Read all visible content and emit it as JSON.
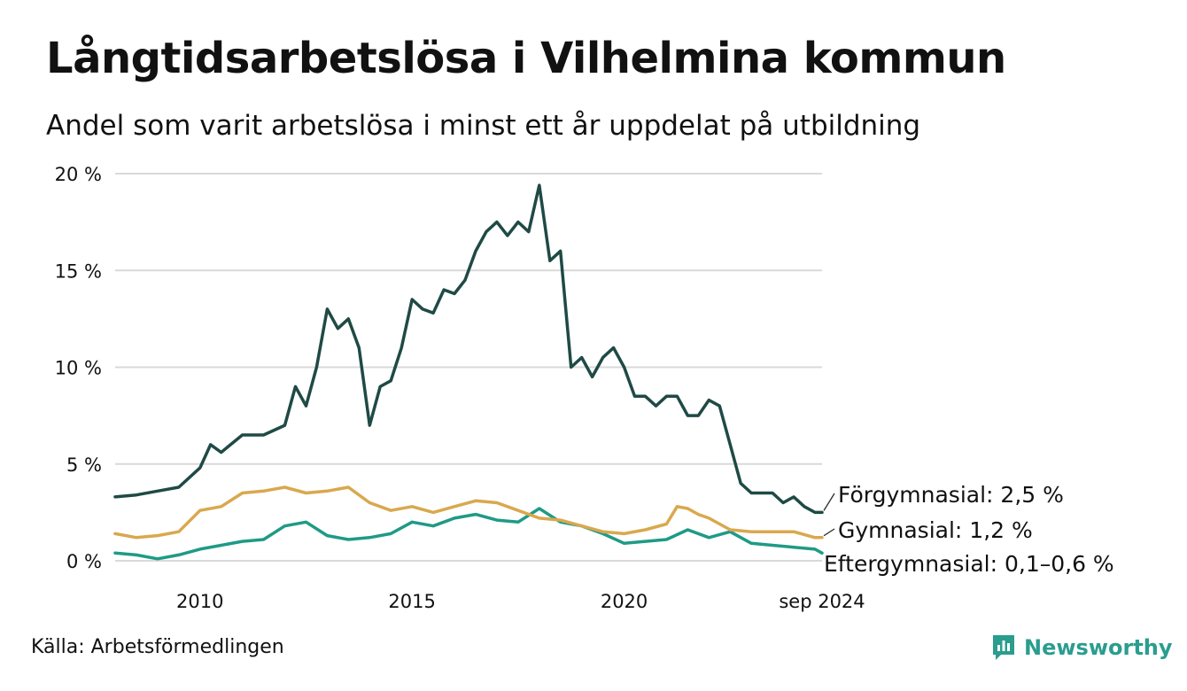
{
  "header": {
    "title": "Långtidsarbetslösa i Vilhelmina kommun",
    "subtitle": "Andel som varit arbetslösa i minst ett år uppdelat på utbildning"
  },
  "footer": {
    "source": "Källa: Arbetsförmedlingen",
    "brand": "Newsworthy"
  },
  "colors": {
    "forgymnasial": "#1f4a45",
    "gymnasial": "#d9a84e",
    "eftergymnasial": "#1f9a86",
    "grid": "#d9d9d9",
    "brand": "#2a9d8f"
  },
  "chart_data": {
    "type": "line",
    "title": "Långtidsarbetslösa i Vilhelmina kommun",
    "subtitle": "Andel som varit arbetslösa i minst ett år uppdelat på utbildning",
    "xlabel": "",
    "ylabel": "",
    "ylim": [
      0,
      20
    ],
    "xlim": [
      "2008-01",
      "2024-09"
    ],
    "y_ticks": [
      0,
      5,
      10,
      15,
      20
    ],
    "y_tick_labels": [
      "0 %",
      "5 %",
      "10 %",
      "15 %",
      "20 %"
    ],
    "x_ticks": [
      "2010-01",
      "2015-01",
      "2020-01",
      "2024-09"
    ],
    "x_tick_labels": [
      "2010",
      "2015",
      "2020",
      "sep 2024"
    ],
    "grid": "horizontal",
    "legend": "direct labels at line ends (right)",
    "series": [
      {
        "name": "Förgymnasial",
        "end_label": "Förgymnasial: 2,5 %",
        "color": "#1f4a45",
        "x": [
          "2008-01",
          "2008-07",
          "2009-01",
          "2009-07",
          "2010-01",
          "2010-04",
          "2010-07",
          "2011-01",
          "2011-07",
          "2012-01",
          "2012-04",
          "2012-07",
          "2012-10",
          "2013-01",
          "2013-04",
          "2013-07",
          "2013-10",
          "2014-01",
          "2014-04",
          "2014-07",
          "2014-10",
          "2015-01",
          "2015-04",
          "2015-07",
          "2015-10",
          "2016-01",
          "2016-04",
          "2016-07",
          "2016-10",
          "2017-01",
          "2017-04",
          "2017-07",
          "2017-10",
          "2018-01",
          "2018-04",
          "2018-07",
          "2018-10",
          "2019-01",
          "2019-04",
          "2019-07",
          "2019-10",
          "2020-01",
          "2020-04",
          "2020-07",
          "2020-10",
          "2021-01",
          "2021-04",
          "2021-07",
          "2021-10",
          "2022-01",
          "2022-04",
          "2022-07",
          "2022-10",
          "2023-01",
          "2023-04",
          "2023-07",
          "2023-10",
          "2024-01",
          "2024-04",
          "2024-07",
          "2024-09"
        ],
        "y": [
          3.3,
          3.4,
          3.6,
          3.8,
          4.8,
          6.0,
          5.6,
          6.5,
          6.5,
          7.0,
          9.0,
          8.0,
          10.0,
          13.0,
          12.0,
          12.5,
          11.0,
          7.0,
          9.0,
          9.3,
          11.0,
          13.5,
          13.0,
          12.8,
          14.0,
          13.8,
          14.5,
          16.0,
          17.0,
          17.5,
          16.8,
          17.5,
          17.0,
          19.4,
          15.5,
          16.0,
          10.0,
          10.5,
          9.5,
          10.5,
          11.0,
          10.0,
          8.5,
          8.5,
          8.0,
          8.5,
          8.5,
          7.5,
          7.5,
          8.3,
          8.0,
          6.0,
          4.0,
          3.5,
          3.5,
          3.5,
          3.0,
          3.3,
          2.8,
          2.5,
          2.5
        ]
      },
      {
        "name": "Gymnasial",
        "end_label": "Gymnasial: 1,2 %",
        "color": "#d9a84e",
        "x": [
          "2008-01",
          "2008-07",
          "2009-01",
          "2009-07",
          "2010-01",
          "2010-07",
          "2011-01",
          "2011-07",
          "2012-01",
          "2012-07",
          "2013-01",
          "2013-07",
          "2014-01",
          "2014-07",
          "2015-01",
          "2015-07",
          "2016-01",
          "2016-07",
          "2017-01",
          "2017-07",
          "2018-01",
          "2018-07",
          "2019-01",
          "2019-07",
          "2020-01",
          "2020-07",
          "2021-01",
          "2021-04",
          "2021-07",
          "2021-10",
          "2022-01",
          "2022-07",
          "2023-01",
          "2023-07",
          "2024-01",
          "2024-07",
          "2024-09"
        ],
        "y": [
          1.4,
          1.2,
          1.3,
          1.5,
          2.6,
          2.8,
          3.5,
          3.6,
          3.8,
          3.5,
          3.6,
          3.8,
          3.0,
          2.6,
          2.8,
          2.5,
          2.8,
          3.1,
          3.0,
          2.6,
          2.2,
          2.1,
          1.8,
          1.5,
          1.4,
          1.6,
          1.9,
          2.8,
          2.7,
          2.4,
          2.2,
          1.6,
          1.5,
          1.5,
          1.5,
          1.2,
          1.2
        ]
      },
      {
        "name": "Eftergymnasial",
        "end_label": "Eftergymnasial: 0,1–0,6 %",
        "color": "#1f9a86",
        "x": [
          "2008-01",
          "2008-07",
          "2009-01",
          "2009-07",
          "2010-01",
          "2010-07",
          "2011-01",
          "2011-07",
          "2012-01",
          "2012-07",
          "2013-01",
          "2013-07",
          "2014-01",
          "2014-07",
          "2015-01",
          "2015-07",
          "2016-01",
          "2016-07",
          "2017-01",
          "2017-07",
          "2018-01",
          "2018-07",
          "2019-01",
          "2019-07",
          "2020-01",
          "2020-07",
          "2021-01",
          "2021-07",
          "2022-01",
          "2022-07",
          "2023-01",
          "2023-07",
          "2024-01",
          "2024-07",
          "2024-09"
        ],
        "y": [
          0.4,
          0.3,
          0.1,
          0.3,
          0.6,
          0.8,
          1.0,
          1.1,
          1.8,
          2.0,
          1.3,
          1.1,
          1.2,
          1.4,
          2.0,
          1.8,
          2.2,
          2.4,
          2.1,
          2.0,
          2.7,
          2.0,
          1.8,
          1.4,
          0.9,
          1.0,
          1.1,
          1.6,
          1.2,
          1.5,
          0.9,
          0.8,
          0.7,
          0.6,
          0.4
        ]
      }
    ]
  }
}
